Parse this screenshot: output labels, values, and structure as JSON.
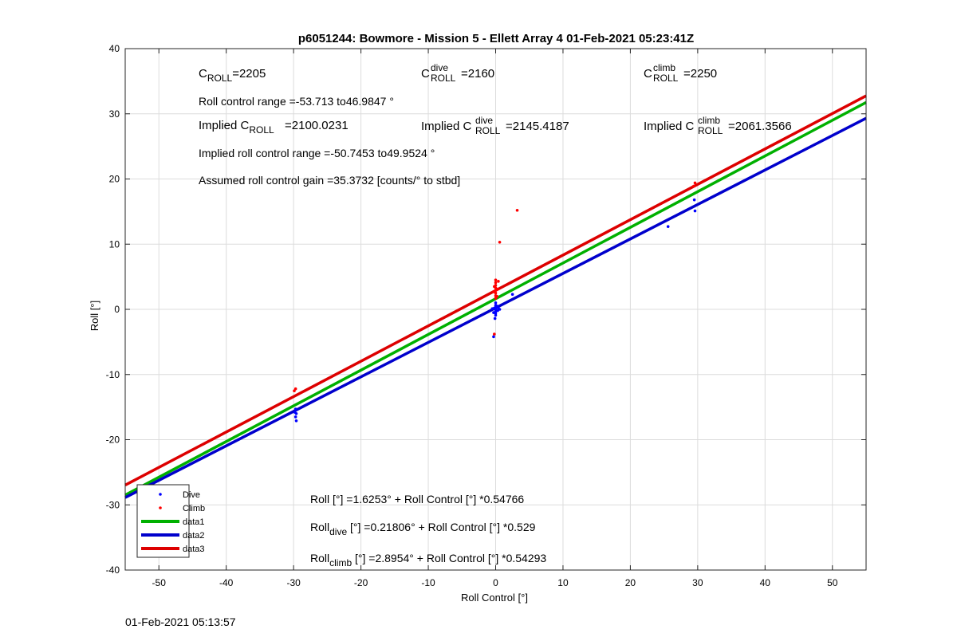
{
  "footer_timestamp": "01-Feb-2021 05:13:57",
  "chart_data": {
    "type": "scatter",
    "title": "p6051244: Bowmore - Mission 5 - Ellett Array 4 01-Feb-2021 05:23:41Z",
    "xlabel": "Roll Control [°]",
    "ylabel": "Roll [°]",
    "xlim": [
      -55,
      55
    ],
    "ylim": [
      -40,
      40
    ],
    "xticks": [
      -50,
      -40,
      -30,
      -20,
      -10,
      0,
      10,
      20,
      30,
      40,
      50
    ],
    "yticks": [
      -40,
      -30,
      -20,
      -10,
      0,
      10,
      20,
      30,
      40
    ],
    "grid": true,
    "legend_position": "bottom-left",
    "legend": [
      "Dive",
      "Climb",
      "data1",
      "data2",
      "data3"
    ],
    "colors": {
      "dive": "#0000ff",
      "climb": "#ff0000",
      "data1": "#00b000",
      "data2": "#0000cc",
      "data3": "#dd0000"
    },
    "series": [
      {
        "name": "Dive",
        "kind": "points",
        "points": [
          [
            -29.7,
            -15.3
          ],
          [
            -29.6,
            -16.0
          ],
          [
            -29.7,
            -16.5
          ],
          [
            -29.6,
            -17.1
          ],
          [
            -29.8,
            -15.8
          ],
          [
            0,
            1.0
          ],
          [
            0,
            0.6
          ],
          [
            0,
            0.3
          ],
          [
            0,
            0
          ],
          [
            0,
            -0.3
          ],
          [
            0,
            -0.6
          ],
          [
            0,
            -0.9
          ],
          [
            0.2,
            0.5
          ],
          [
            0.3,
            -0.2
          ],
          [
            -0.2,
            0.2
          ],
          [
            -0.3,
            -0.5
          ],
          [
            0.4,
            0.2
          ],
          [
            0.6,
            0.0
          ],
          [
            -0.5,
            0.1
          ],
          [
            -0.3,
            -4.2
          ],
          [
            -0.1,
            -1.4
          ],
          [
            2.5,
            2.3
          ],
          [
            25.6,
            12.7
          ],
          [
            29.5,
            16.8
          ],
          [
            29.6,
            15.1
          ]
        ]
      },
      {
        "name": "Climb",
        "kind": "points",
        "points": [
          [
            -29.9,
            -12.5
          ],
          [
            -29.7,
            -12.2
          ],
          [
            0,
            4.5
          ],
          [
            0,
            4.1
          ],
          [
            0,
            3.7
          ],
          [
            0,
            3.3
          ],
          [
            0,
            2.9
          ],
          [
            0,
            2.5
          ],
          [
            0,
            2.1
          ],
          [
            0,
            1.7
          ],
          [
            0.3,
            3.1
          ],
          [
            -0.2,
            3.5
          ],
          [
            0.4,
            4.3
          ],
          [
            -0.3,
            2.7
          ],
          [
            0.2,
            2.0
          ],
          [
            -0.2,
            -3.8
          ],
          [
            0.6,
            10.3
          ],
          [
            3.2,
            15.2
          ],
          [
            29.4,
            18.9
          ],
          [
            29.6,
            19.4
          ]
        ]
      },
      {
        "name": "data1",
        "kind": "line",
        "intercept": 1.6253,
        "slope": 0.54766
      },
      {
        "name": "data2",
        "kind": "line",
        "intercept": 0.21806,
        "slope": 0.529
      },
      {
        "name": "data3",
        "kind": "line",
        "intercept": 2.8954,
        "slope": 0.54293
      }
    ],
    "annotations": {
      "c_roll": {
        "base": "C",
        "sub": "ROLL",
        "sup": "",
        "value": "=2205"
      },
      "c_roll_dive": {
        "base": "C",
        "sub": "ROLL",
        "sup": "dive",
        "value": "=2160"
      },
      "c_roll_climb": {
        "base": "C",
        "sub": "ROLL",
        "sup": "climb",
        "value": "=2250"
      },
      "roll_control_range": "Roll control range =-53.713 to46.9847 °",
      "implied_c_roll": {
        "prefix": "Implied C",
        "sub": "ROLL",
        "sup": "",
        "value": "=2100.0231"
      },
      "implied_c_roll_dive": {
        "prefix": "Implied C",
        "sub": "ROLL",
        "sup": "dive",
        "value": "=2145.4187"
      },
      "implied_c_roll_climb": {
        "prefix": "Implied C",
        "sub": "ROLL",
        "sup": "climb",
        "value": "=2061.3566"
      },
      "implied_roll_control_range": "Implied roll control range =-50.7453 to49.9524 °",
      "assumed_gain": "Assumed roll control gain =35.3732 [counts/° to stbd]",
      "fit_all": "Roll [°] =1.6253° + Roll Control [°] *0.54766",
      "fit_dive": {
        "base": "Roll",
        "sub": "dive",
        "rest": " [°] =0.21806° + Roll Control [°] *0.529"
      },
      "fit_climb": {
        "base": "Roll",
        "sub": "climb",
        "rest": " [°] =2.8954° + Roll Control [°] *0.54293"
      }
    }
  }
}
